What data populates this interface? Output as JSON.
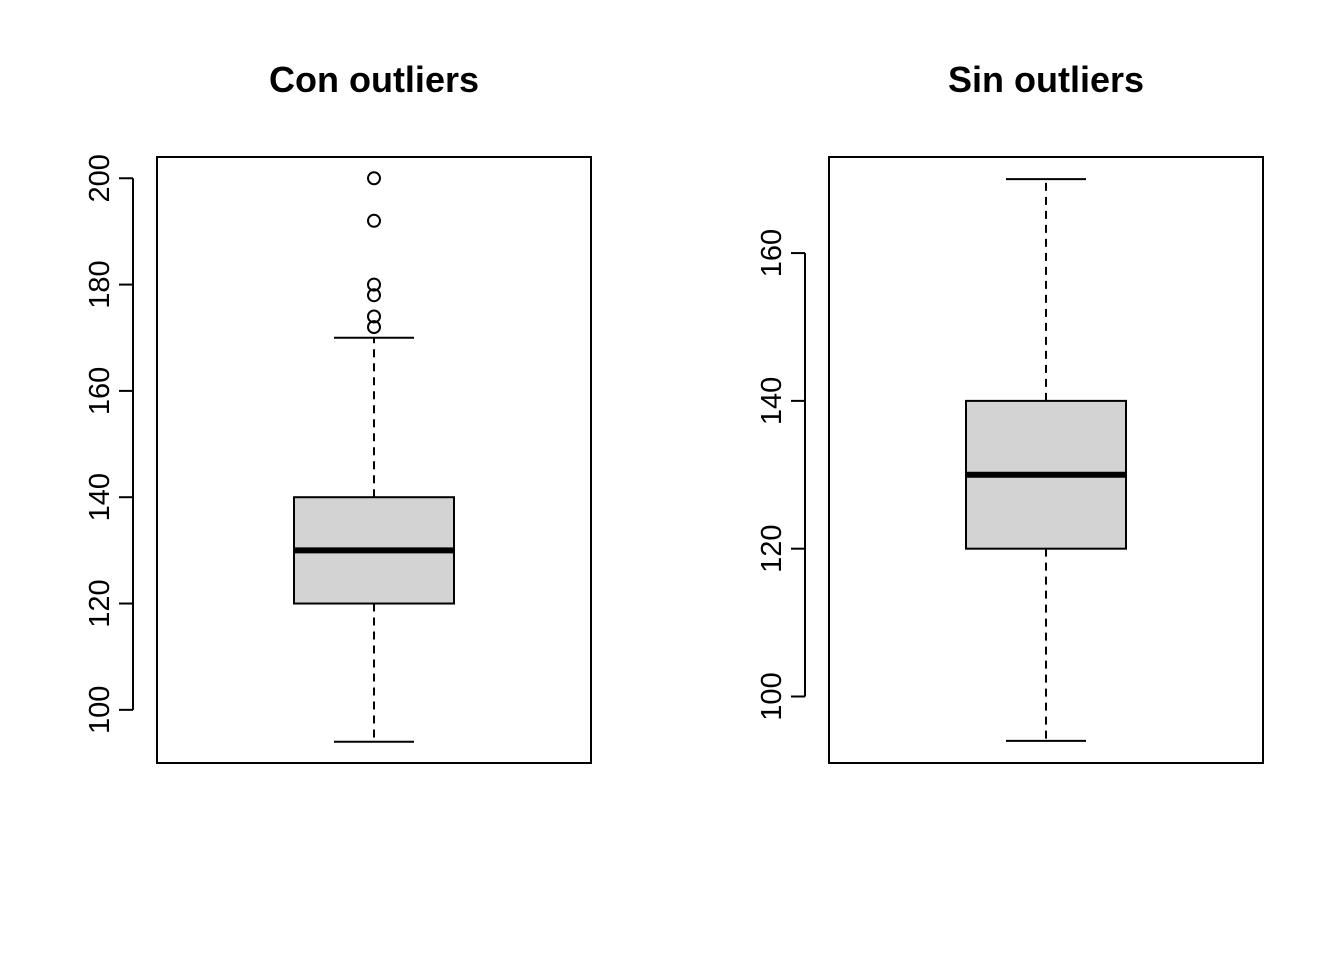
{
  "chart_data": [
    {
      "type": "boxplot",
      "title": "Con outliers",
      "xlabel": "",
      "ylabel": "",
      "ylim": [
        90,
        204
      ],
      "yticks": [
        100,
        120,
        140,
        160,
        180,
        200
      ],
      "grid": false,
      "box": {
        "whisker_low": 94,
        "q1": 120,
        "median": 130,
        "q3": 140,
        "whisker_high": 170,
        "fill": "#d3d3d3"
      },
      "outliers": [
        172,
        174,
        178,
        180,
        192,
        200
      ]
    },
    {
      "type": "boxplot",
      "title": "Sin outliers",
      "xlabel": "",
      "ylabel": "",
      "ylim": [
        91,
        173
      ],
      "yticks": [
        100,
        120,
        140,
        160
      ],
      "grid": false,
      "box": {
        "whisker_low": 94,
        "q1": 120,
        "median": 130,
        "q3": 140,
        "whisker_high": 170,
        "fill": "#d3d3d3"
      },
      "outliers": []
    }
  ]
}
